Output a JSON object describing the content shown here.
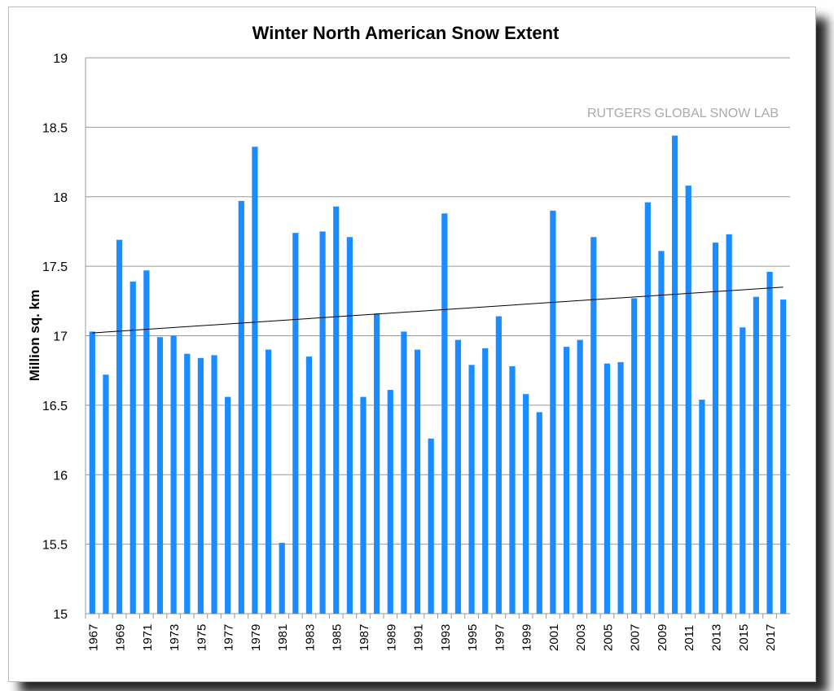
{
  "chart_data": {
    "type": "bar",
    "title": "Winter North American Snow Extent",
    "ylabel": "Million sq. km",
    "xlabel": "",
    "watermark": "RUTGERS GLOBAL SNOW LAB",
    "ylim": [
      15,
      19
    ],
    "yticks": [
      15,
      15.5,
      16,
      16.5,
      17,
      17.5,
      18,
      18.5,
      19
    ],
    "grid": true,
    "bar_color": "#1a8cff",
    "categories": [
      1967,
      1968,
      1969,
      1970,
      1971,
      1972,
      1973,
      1974,
      1975,
      1976,
      1977,
      1978,
      1979,
      1980,
      1981,
      1982,
      1983,
      1984,
      1985,
      1986,
      1987,
      1988,
      1989,
      1990,
      1991,
      1992,
      1993,
      1994,
      1995,
      1996,
      1997,
      1998,
      1999,
      2000,
      2001,
      2002,
      2003,
      2004,
      2005,
      2006,
      2007,
      2008,
      2009,
      2010,
      2011,
      2012,
      2013,
      2014,
      2015,
      2016,
      2017,
      2018
    ],
    "values": [
      17.03,
      16.72,
      17.69,
      17.39,
      17.47,
      16.99,
      17.0,
      16.87,
      16.84,
      16.86,
      16.56,
      17.97,
      18.36,
      16.9,
      15.51,
      17.74,
      16.85,
      17.75,
      17.93,
      17.71,
      16.56,
      17.16,
      16.61,
      17.03,
      16.9,
      16.26,
      17.88,
      16.97,
      16.79,
      16.91,
      17.14,
      16.78,
      16.58,
      16.45,
      17.9,
      16.92,
      16.97,
      17.71,
      16.8,
      16.81,
      17.27,
      17.96,
      17.61,
      18.44,
      18.08,
      16.54,
      17.67,
      17.73,
      17.06,
      17.28,
      17.46,
      17.26
    ],
    "trendline": {
      "start": 17.02,
      "end": 17.35
    }
  }
}
